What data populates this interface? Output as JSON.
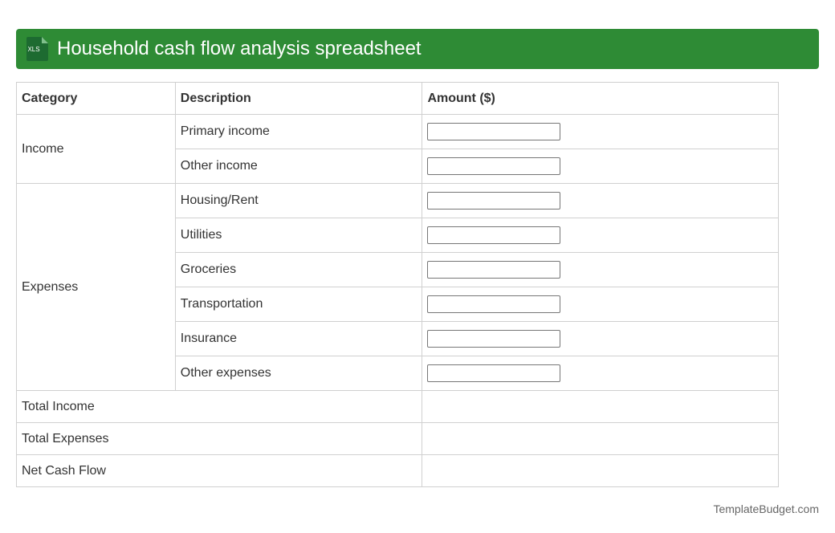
{
  "header": {
    "icon_label": "XLS",
    "title": "Household cash flow analysis spreadsheet"
  },
  "table": {
    "columns": [
      "Category",
      "Description",
      "Amount ($)"
    ],
    "groups": [
      {
        "category": "Income",
        "items": [
          "Primary income",
          "Other income"
        ]
      },
      {
        "category": "Expenses",
        "items": [
          "Housing/Rent",
          "Utilities",
          "Groceries",
          "Transportation",
          "Insurance",
          "Other expenses"
        ]
      }
    ],
    "totals": [
      "Total Income",
      "Total Expenses",
      "Net Cash Flow"
    ]
  },
  "footer": "TemplateBudget.com"
}
